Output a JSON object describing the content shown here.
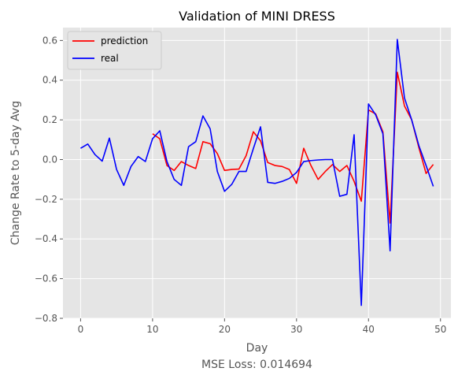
{
  "chart_data": {
    "type": "line",
    "title": "Validation of MINI DRESS",
    "xlabel": "Day",
    "ylabel": "Change Rate to 5-day Avg",
    "caption": "MSE Loss: 0.014694",
    "xlim": [
      -2.45,
      51.45
    ],
    "ylim": [
      -0.8,
      0.665
    ],
    "xticks": [
      0,
      10,
      20,
      30,
      40,
      50
    ],
    "yticks": [
      -0.8,
      -0.6,
      -0.4,
      -0.2,
      0.0,
      0.2,
      0.4,
      0.6
    ],
    "xtick_labels": [
      "0",
      "10",
      "20",
      "30",
      "40",
      "50"
    ],
    "ytick_labels": [
      "−0.8",
      "−0.6",
      "−0.4",
      "−0.2",
      "0.0",
      "0.2",
      "0.4",
      "0.6"
    ],
    "grid": true,
    "legend_position": "top-left",
    "background": "#e5e5e5",
    "series": [
      {
        "name": "prediction",
        "color": "#ff0000",
        "x": [
          10,
          11,
          12,
          13,
          14,
          15,
          16,
          17,
          18,
          19,
          20,
          21,
          22,
          23,
          24,
          25,
          26,
          27,
          28,
          29,
          30,
          31,
          32,
          33,
          34,
          35,
          36,
          37,
          38,
          39,
          40,
          41,
          42,
          43,
          44,
          45,
          46,
          47,
          48,
          49
        ],
        "y": [
          0.13,
          0.105,
          -0.03,
          -0.055,
          -0.01,
          -0.03,
          -0.045,
          0.09,
          0.08,
          0.03,
          -0.055,
          -0.05,
          -0.048,
          0.02,
          0.14,
          0.095,
          -0.015,
          -0.03,
          -0.035,
          -0.05,
          -0.12,
          0.057,
          -0.03,
          -0.1,
          -0.06,
          -0.025,
          -0.06,
          -0.03,
          -0.11,
          -0.21,
          0.25,
          0.23,
          0.14,
          -0.32,
          0.44,
          0.27,
          0.2,
          0.06,
          -0.07,
          -0.025
        ]
      },
      {
        "name": "real",
        "color": "#0000ff",
        "x": [
          0,
          1,
          2,
          3,
          4,
          5,
          6,
          7,
          8,
          9,
          10,
          11,
          12,
          13,
          14,
          15,
          16,
          17,
          18,
          19,
          20,
          21,
          22,
          23,
          24,
          25,
          26,
          27,
          28,
          29,
          30,
          31,
          32,
          33,
          34,
          35,
          36,
          37,
          38,
          39,
          40,
          41,
          42,
          43,
          44,
          45,
          46,
          47,
          48,
          49
        ],
        "y": [
          0.057,
          0.078,
          0.025,
          -0.008,
          0.108,
          -0.05,
          -0.13,
          -0.035,
          0.015,
          -0.01,
          0.105,
          0.145,
          -0.01,
          -0.1,
          -0.13,
          0.065,
          0.09,
          0.22,
          0.155,
          -0.06,
          -0.16,
          -0.125,
          -0.06,
          -0.06,
          0.055,
          0.165,
          -0.115,
          -0.12,
          -0.11,
          -0.095,
          -0.065,
          -0.01,
          -0.005,
          -0.002,
          0.0,
          0.0,
          -0.185,
          -0.175,
          0.125,
          -0.735,
          0.28,
          0.225,
          0.13,
          -0.46,
          0.605,
          0.31,
          0.2,
          0.07,
          -0.03,
          -0.135
        ]
      }
    ]
  }
}
